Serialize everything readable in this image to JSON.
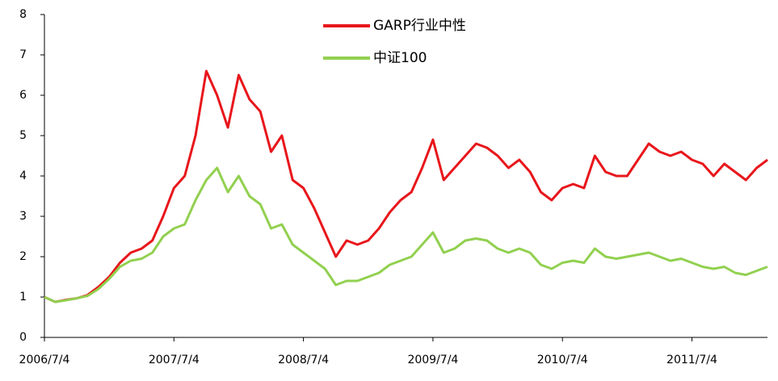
{
  "chart_data": {
    "type": "line",
    "categories": [
      "2006/7/4",
      null,
      null,
      null,
      null,
      null,
      null,
      null,
      null,
      null,
      null,
      null,
      "2007/7/4",
      null,
      null,
      null,
      null,
      null,
      null,
      null,
      null,
      null,
      null,
      null,
      "2008/7/4",
      null,
      null,
      null,
      null,
      null,
      null,
      null,
      null,
      null,
      null,
      null,
      "2009/7/4",
      null,
      null,
      null,
      null,
      null,
      null,
      null,
      null,
      null,
      null,
      null,
      "2010/7/4",
      null,
      null,
      null,
      null,
      null,
      null,
      null,
      null,
      null,
      null,
      null,
      "2011/7/4",
      null,
      null,
      null,
      null,
      null,
      null,
      null
    ],
    "series": [
      {
        "name": "GARP行业中性",
        "color": "#e8161b",
        "values": [
          1.0,
          0.88,
          0.93,
          0.97,
          1.05,
          1.25,
          1.5,
          1.85,
          2.1,
          2.2,
          2.4,
          3.0,
          3.7,
          4.0,
          5.0,
          6.6,
          6.0,
          5.2,
          6.5,
          5.9,
          5.6,
          4.6,
          5.0,
          3.9,
          3.7,
          3.2,
          2.6,
          2.0,
          2.4,
          2.3,
          2.4,
          2.7,
          3.1,
          3.4,
          3.6,
          4.2,
          4.9,
          3.9,
          4.2,
          4.5,
          4.8,
          4.7,
          4.5,
          4.2,
          4.4,
          4.1,
          3.6,
          3.4,
          3.7,
          3.8,
          3.7,
          4.5,
          4.1,
          4.0,
          4.0,
          4.4,
          4.8,
          4.6,
          4.5,
          4.6,
          4.4,
          4.3,
          4.0,
          4.3,
          4.1,
          3.9,
          4.2,
          4.4
        ]
      },
      {
        "name": "中证100",
        "color": "#92d050",
        "values": [
          1.0,
          0.88,
          0.92,
          0.97,
          1.03,
          1.2,
          1.45,
          1.75,
          1.9,
          1.95,
          2.1,
          2.5,
          2.7,
          2.8,
          3.4,
          3.9,
          4.2,
          3.6,
          4.0,
          3.5,
          3.3,
          2.7,
          2.8,
          2.3,
          2.1,
          1.9,
          1.7,
          1.3,
          1.4,
          1.4,
          1.5,
          1.6,
          1.8,
          1.9,
          2.0,
          2.3,
          2.6,
          2.1,
          2.2,
          2.4,
          2.45,
          2.4,
          2.2,
          2.1,
          2.2,
          2.1,
          1.8,
          1.7,
          1.85,
          1.9,
          1.85,
          2.2,
          2.0,
          1.95,
          2.0,
          2.05,
          2.1,
          2.0,
          1.9,
          1.95,
          1.85,
          1.75,
          1.7,
          1.75,
          1.6,
          1.55,
          1.65,
          1.75
        ]
      }
    ],
    "ylim": [
      0,
      8
    ],
    "yticks": [
      0,
      1,
      2,
      3,
      4,
      5,
      6,
      7,
      8
    ],
    "legend": "top"
  }
}
